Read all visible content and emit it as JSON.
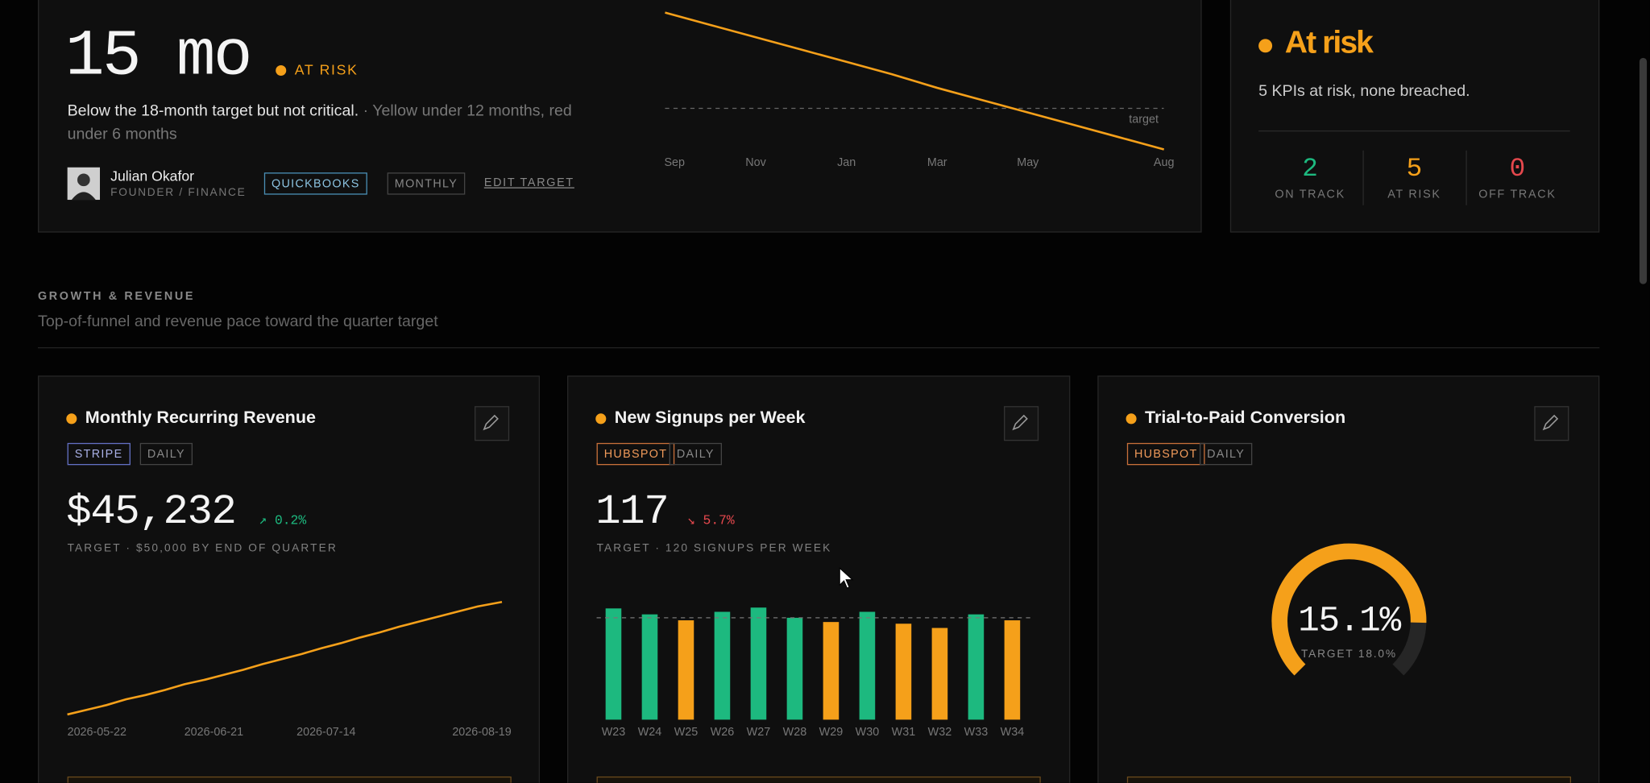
{
  "runway": {
    "value": "15 mo",
    "status": "AT RISK",
    "description": "Below the 18-month target but not critical.",
    "note": "· Yellow under 12 months, red under 6 months",
    "owner": {
      "name": "Julian Okafor",
      "role": "FOUNDER / FINANCE"
    },
    "tags": [
      "QUICKBOOKS",
      "MONTHLY"
    ],
    "action": "EDIT TARGET",
    "chart": {
      "type": "line",
      "categories": [
        "Sep",
        null,
        "Nov",
        null,
        "Jan",
        null,
        "Mar",
        null,
        "May",
        null,
        null,
        "Aug"
      ],
      "values": [
        25,
        24.1,
        23.2,
        22.3,
        21.4,
        20.5,
        19.5,
        18.6,
        17.7,
        16.8,
        15.9,
        15
      ],
      "target": 18,
      "target_label": "target",
      "ylim": [
        14,
        26
      ],
      "color": "#f5a01a"
    }
  },
  "overall": {
    "status": "At risk",
    "summary": "5 KPIs at risk, none breached.",
    "counts": [
      {
        "value": "2",
        "label": "ON TRACK"
      },
      {
        "value": "5",
        "label": "AT RISK"
      },
      {
        "value": "0",
        "label": "OFF TRACK"
      }
    ]
  },
  "section": {
    "title": "GROWTH & REVENUE",
    "subtitle": "Top-of-funnel and revenue pace toward the quarter target"
  },
  "kpis": [
    {
      "title": "Monthly Recurring Revenue",
      "source": "STRIPE",
      "frequency": "DAILY",
      "value": "$45,232",
      "change": "0.2%",
      "direction": "up",
      "target_text": "TARGET · $50,000 BY END OF QUARTER",
      "chart": {
        "type": "line",
        "x": [
          "2026-05-22",
          "2026-05-26",
          "2026-05-30",
          "2026-06-03",
          "2026-06-07",
          "2026-06-11",
          "2026-06-15",
          "2026-06-19",
          "2026-06-23",
          "2026-06-27",
          "2026-07-01",
          "2026-07-05",
          "2026-07-09",
          "2026-07-13",
          "2026-07-17",
          "2026-07-21",
          "2026-07-25",
          "2026-07-29",
          "2026-08-02",
          "2026-08-06",
          "2026-08-10",
          "2026-08-14",
          "2026-08-19"
        ],
        "values": [
          29600,
          30250,
          30900,
          31700,
          32300,
          33000,
          33800,
          34400,
          35100,
          35800,
          36600,
          37300,
          38000,
          38800,
          39500,
          40300,
          41000,
          41800,
          42500,
          43200,
          43900,
          44600,
          45232
        ],
        "xlim": [
          "2026-05-22",
          "2026-08-19"
        ],
        "xticks": [
          "2026-05-22",
          "2026-06-21",
          "2026-07-14",
          "2026-08-19"
        ],
        "ylim": [
          28000,
          47000
        ],
        "color": "#f5a01a"
      }
    },
    {
      "title": "New Signups per Week",
      "source": "HUBSPOT",
      "frequency": "DAILY",
      "value": "117",
      "change": "5.7%",
      "direction": "down",
      "target_text": "TARGET · 120 SIGNUPS PER WEEK",
      "chart": {
        "type": "bar",
        "categories": [
          "W23",
          "W24",
          "W25",
          "W26",
          "W27",
          "W28",
          "W29",
          "W30",
          "W31",
          "W32",
          "W33",
          "W34"
        ],
        "values": [
          131,
          124,
          117,
          127,
          132,
          120,
          115,
          127,
          113,
          108,
          124,
          117
        ],
        "target": 120,
        "ylim": [
          0,
          140
        ],
        "colors": {
          "above": "#1db97f",
          "below": "#f5a01a"
        }
      }
    },
    {
      "title": "Trial-to-Paid Conversion",
      "source": "HUBSPOT",
      "frequency": "DAILY",
      "chart": {
        "type": "gauge",
        "value": 15.1,
        "value_label": "15.1%",
        "target_label": "TARGET 18.0%",
        "ylim": [
          0,
          18
        ],
        "color": "#f5a01a"
      }
    }
  ]
}
